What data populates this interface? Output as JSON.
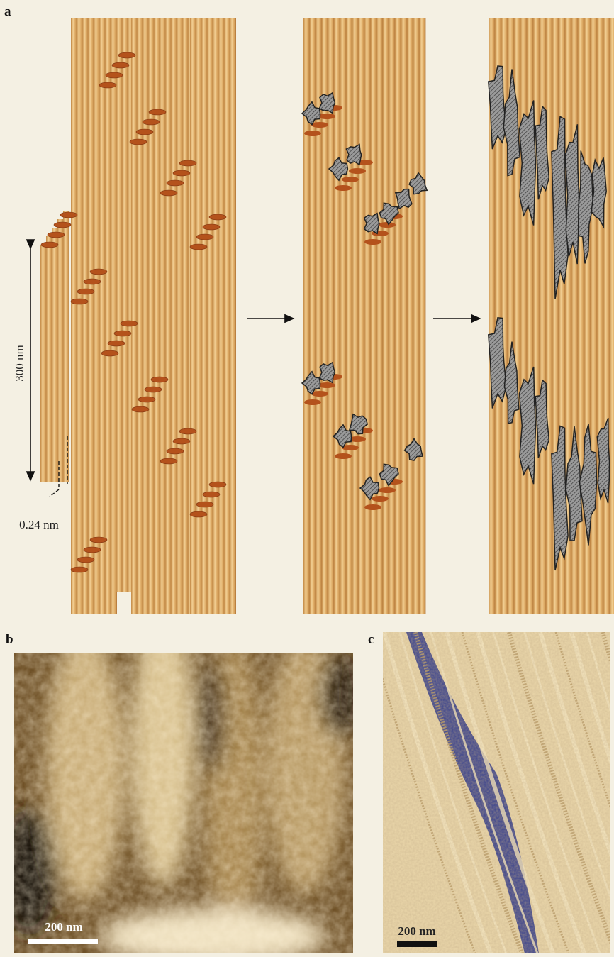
{
  "panels": {
    "a": {
      "label": "a",
      "length_label": "300 nm",
      "gap_label": "0.24 nm"
    },
    "b": {
      "label": "b",
      "scale_label": "200 nm"
    },
    "c": {
      "label": "c",
      "scale_label": "200 nm"
    }
  }
}
